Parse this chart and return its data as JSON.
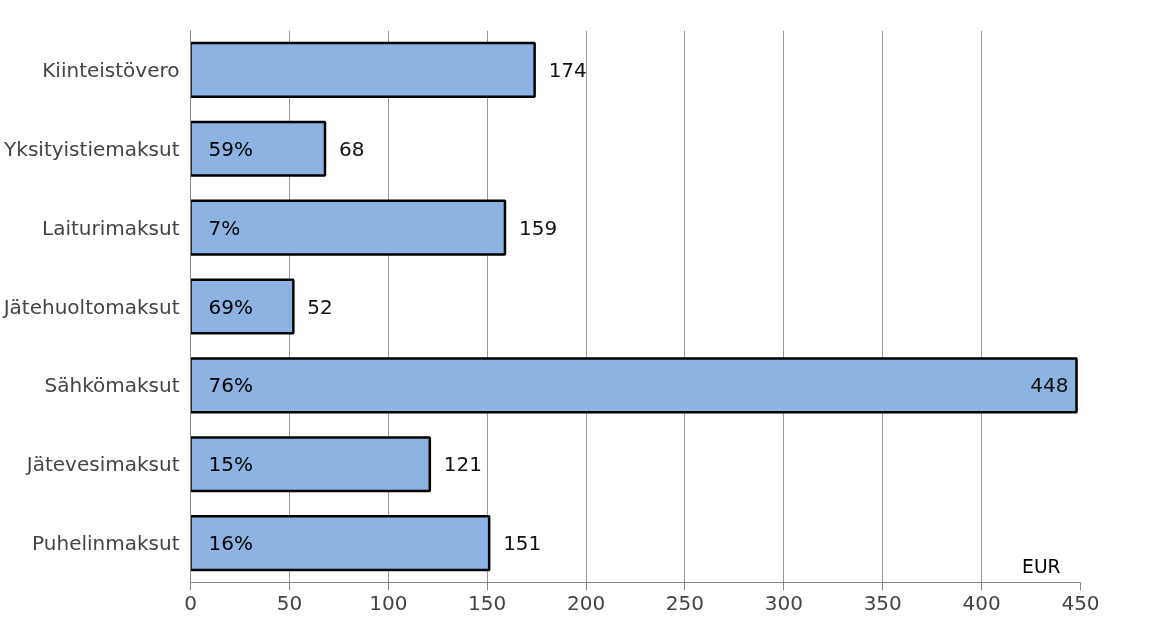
{
  "chart_data": {
    "type": "bar",
    "orientation": "horizontal",
    "categories": [
      "Kiinteistövero",
      "Yksityistiemaksut",
      "Laiturimaksut",
      "Jätehuoltomaksut",
      "Sähkömaksut",
      "Jätevesimaksut",
      "Puhelinmaksut"
    ],
    "values": [
      174,
      68,
      159,
      52,
      448,
      121,
      151
    ],
    "color": "#8db3e2",
    "data_labels": true,
    "xlim": [
      0,
      450
    ],
    "xticks": [
      0,
      50,
      100,
      150,
      200,
      250,
      300,
      350,
      400,
      450
    ],
    "grid": "x",
    "annotations": [
      "59%",
      "7%",
      "69%",
      "76%",
      "15%",
      "16%",
      "EUR"
    ]
  }
}
